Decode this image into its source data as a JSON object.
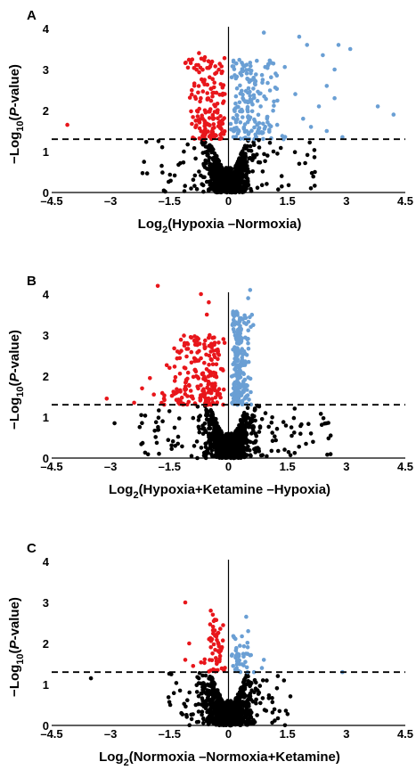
{
  "colors": {
    "up": "#6a9fd4",
    "down": "#e8161b",
    "ns": "#000000",
    "threshold_line": "#000000"
  },
  "chart_data": [
    {
      "type": "scatter",
      "panel_label": "A",
      "xlabel_main": "Log",
      "xlabel_sub": "2",
      "xlabel_rest": "(Hypoxia –Normoxia)",
      "ylabel_main": "−Log",
      "ylabel_sub": "10",
      "ylabel_open": "(",
      "ylabel_italic": "P",
      "ylabel_rest": "-value)",
      "xlim": [
        -4.5,
        4.5
      ],
      "ylim": [
        0,
        4
      ],
      "xticks": [
        -4.5,
        -3,
        -1.5,
        0,
        1.5,
        3,
        4.5
      ],
      "xtick_labels": [
        "–4.5",
        "–3",
        "–1.5",
        "0",
        "1.5",
        "3",
        "4.5"
      ],
      "yticks": [
        0,
        1,
        2,
        3,
        4
      ],
      "ytick_labels": [
        "0",
        "1",
        "2",
        "3",
        "4"
      ],
      "threshold_y": 1.3,
      "seed": 11,
      "clusters": {
        "ns": {
          "n": 900,
          "sx": 0.28,
          "tail": 0.1,
          "xr": [
            -2.2,
            2.2
          ]
        },
        "down": {
          "n": 170,
          "xr": [
            -1.2,
            -0.05
          ],
          "yr": [
            1.3,
            3.3
          ]
        },
        "up": {
          "n": 190,
          "xr": [
            0.05,
            1.6
          ],
          "yr": [
            1.3,
            3.3
          ]
        }
      },
      "outliers": [
        {
          "x": -4.1,
          "y": 1.65,
          "group": "down"
        },
        {
          "x": -0.75,
          "y": 3.4,
          "group": "down"
        },
        {
          "x": -0.6,
          "y": 3.3,
          "group": "down"
        },
        {
          "x": 0.9,
          "y": 3.9,
          "group": "up"
        },
        {
          "x": 1.8,
          "y": 3.8,
          "group": "up"
        },
        {
          "x": 2.0,
          "y": 3.6,
          "group": "up"
        },
        {
          "x": 2.8,
          "y": 3.6,
          "group": "up"
        },
        {
          "x": 3.1,
          "y": 3.5,
          "group": "up"
        },
        {
          "x": 2.4,
          "y": 3.35,
          "group": "up"
        },
        {
          "x": 2.7,
          "y": 3.0,
          "group": "up"
        },
        {
          "x": 2.5,
          "y": 2.6,
          "group": "up"
        },
        {
          "x": 2.7,
          "y": 2.3,
          "group": "up"
        },
        {
          "x": 2.3,
          "y": 2.1,
          "group": "up"
        },
        {
          "x": 1.9,
          "y": 1.8,
          "group": "up"
        },
        {
          "x": 2.1,
          "y": 1.6,
          "group": "up"
        },
        {
          "x": 2.5,
          "y": 1.5,
          "group": "up"
        },
        {
          "x": 2.9,
          "y": 1.35,
          "group": "up"
        },
        {
          "x": 3.8,
          "y": 2.1,
          "group": "up"
        },
        {
          "x": 4.2,
          "y": 1.9,
          "group": "up"
        },
        {
          "x": 1.4,
          "y": 1.3,
          "group": "up"
        },
        {
          "x": 1.7,
          "y": 2.4,
          "group": "up"
        },
        {
          "x": 1.2,
          "y": 2.9,
          "group": "up"
        },
        {
          "x": -1.7,
          "y": 0.65,
          "group": "ns"
        },
        {
          "x": 1.8,
          "y": 0.7,
          "group": "ns"
        },
        {
          "x": 2.2,
          "y": 0.5,
          "group": "ns"
        }
      ]
    },
    {
      "type": "scatter",
      "panel_label": "B",
      "xlabel_main": "Log",
      "xlabel_sub": "2",
      "xlabel_rest": "(Hypoxia+Ketamine –Hypoxia)",
      "ylabel_main": "−Log",
      "ylabel_sub": "10",
      "ylabel_open": "(",
      "ylabel_italic": "P",
      "ylabel_rest": "-value)",
      "xlim": [
        -4.5,
        4.5
      ],
      "ylim": [
        0,
        4
      ],
      "xticks": [
        -4.5,
        -3,
        -1.5,
        0,
        1.5,
        3,
        4.5
      ],
      "xtick_labels": [
        "–4.5",
        "–3",
        "–1.5",
        "0",
        "1.5",
        "3",
        "4.5"
      ],
      "yticks": [
        0,
        1,
        2,
        3,
        4
      ],
      "ytick_labels": [
        "0",
        "1",
        "2",
        "3",
        "4"
      ],
      "threshold_y": 1.3,
      "seed": 23,
      "clusters": {
        "ns": {
          "n": 900,
          "sx": 0.3,
          "tail": 0.12,
          "xr": [
            -2.4,
            2.6
          ]
        },
        "down": {
          "n": 220,
          "xr": [
            -1.8,
            -0.08
          ],
          "yr": [
            1.3,
            3.0
          ]
        },
        "up": {
          "n": 230,
          "xr": [
            0.08,
            0.65
          ],
          "yr": [
            1.3,
            3.6
          ]
        }
      },
      "outliers": [
        {
          "x": -3.1,
          "y": 1.45,
          "group": "down"
        },
        {
          "x": -2.4,
          "y": 1.35,
          "group": "down"
        },
        {
          "x": -2.2,
          "y": 1.7,
          "group": "down"
        },
        {
          "x": -2.0,
          "y": 1.95,
          "group": "down"
        },
        {
          "x": -1.9,
          "y": 1.55,
          "group": "down"
        },
        {
          "x": -1.8,
          "y": 4.2,
          "group": "down"
        },
        {
          "x": -0.7,
          "y": 4.0,
          "group": "down"
        },
        {
          "x": -0.5,
          "y": 3.8,
          "group": "down"
        },
        {
          "x": -0.55,
          "y": 3.5,
          "group": "down"
        },
        {
          "x": -1.3,
          "y": 2.6,
          "group": "down"
        },
        {
          "x": -1.5,
          "y": 2.2,
          "group": "down"
        },
        {
          "x": 0.55,
          "y": 4.1,
          "group": "up"
        },
        {
          "x": 0.5,
          "y": 3.9,
          "group": "up"
        },
        {
          "x": -2.9,
          "y": 0.85,
          "group": "ns"
        },
        {
          "x": 1.6,
          "y": 0.75,
          "group": "ns"
        },
        {
          "x": 2.1,
          "y": 0.6,
          "group": "ns"
        },
        {
          "x": 2.6,
          "y": 0.55,
          "group": "ns"
        }
      ]
    },
    {
      "type": "scatter",
      "panel_label": "C",
      "xlabel_main": "Log",
      "xlabel_sub": "2",
      "xlabel_rest": "(Normoxia –Normoxia+Ketamine)",
      "ylabel_main": "−Log",
      "ylabel_sub": "10",
      "ylabel_open": "(",
      "ylabel_italic": "P",
      "ylabel_rest": "-value)",
      "xlim": [
        -4.5,
        4.5
      ],
      "ylim": [
        0,
        4
      ],
      "xticks": [
        -4.5,
        -3,
        -1.5,
        0,
        1.5,
        3,
        4.5
      ],
      "xtick_labels": [
        "–4.5",
        "–3",
        "–1.5",
        "0",
        "1.5",
        "3",
        "4.5"
      ],
      "yticks": [
        0,
        1,
        2,
        3,
        4
      ],
      "ytick_labels": [
        "0",
        "1",
        "2",
        "3",
        "4"
      ],
      "threshold_y": 1.3,
      "seed": 37,
      "clusters": {
        "ns": {
          "n": 950,
          "sx": 0.32,
          "tail": 0.08,
          "xr": [
            -1.6,
            1.6
          ]
        },
        "down": {
          "n": 55,
          "xr": [
            -0.75,
            -0.08
          ],
          "yr": [
            1.3,
            2.6
          ]
        },
        "up": {
          "n": 40,
          "xr": [
            0.05,
            0.8
          ],
          "yr": [
            1.3,
            2.2
          ]
        }
      },
      "outliers": [
        {
          "x": -1.1,
          "y": 3.0,
          "group": "down"
        },
        {
          "x": -0.45,
          "y": 2.8,
          "group": "down"
        },
        {
          "x": -0.4,
          "y": 2.7,
          "group": "down"
        },
        {
          "x": -1.0,
          "y": 2.0,
          "group": "down"
        },
        {
          "x": -1.1,
          "y": 1.6,
          "group": "down"
        },
        {
          "x": -0.9,
          "y": 1.45,
          "group": "down"
        },
        {
          "x": 0.45,
          "y": 2.65,
          "group": "up"
        },
        {
          "x": 0.5,
          "y": 2.3,
          "group": "up"
        },
        {
          "x": 0.9,
          "y": 1.6,
          "group": "up"
        },
        {
          "x": 0.85,
          "y": 1.4,
          "group": "up"
        },
        {
          "x": 2.9,
          "y": 1.3,
          "group": "up"
        },
        {
          "x": -3.5,
          "y": 1.15,
          "group": "ns"
        },
        {
          "x": -1.2,
          "y": 0.3,
          "group": "ns"
        },
        {
          "x": 1.3,
          "y": 0.35,
          "group": "ns"
        }
      ]
    }
  ]
}
